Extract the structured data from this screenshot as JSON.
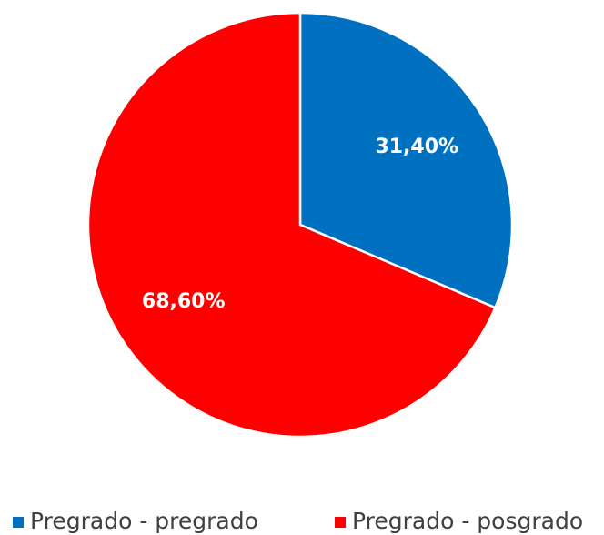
{
  "chart_data": {
    "type": "pie",
    "categories": [
      "Pregrado - pregrado",
      "Pregrado - posgrado"
    ],
    "values": [
      31.4,
      68.6
    ],
    "value_labels": [
      "31,40%",
      "68,60%"
    ],
    "colors": [
      "#0070c0",
      "#ff0000"
    ],
    "legend": "bottom"
  }
}
